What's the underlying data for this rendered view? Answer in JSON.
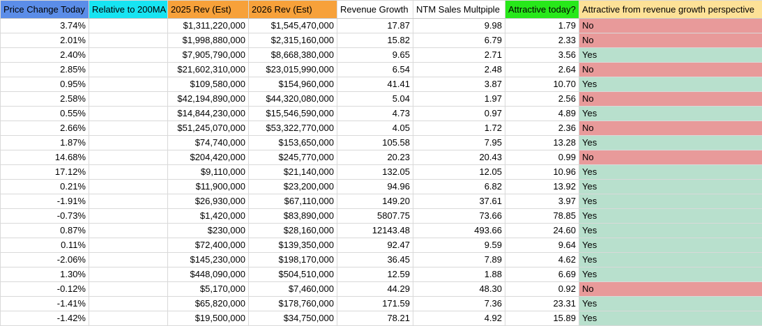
{
  "sheet": {
    "headers": [
      {
        "label": "Price Change Today",
        "bg": "#5b8de8"
      },
      {
        "label": "Relative to 200MA",
        "bg": "#17e4f2"
      },
      {
        "label": "2025 Rev (Est)",
        "bg": "#f7a13a"
      },
      {
        "label": "2026 Rev (Est)",
        "bg": "#f7a13a"
      },
      {
        "label": "Revenue Growth",
        "bg": "#ffffff"
      },
      {
        "label": "NTM Sales Multpiple",
        "bg": "#ffffff"
      },
      {
        "label": "Attractive today?",
        "bg": "#27e81a"
      },
      {
        "label": "Attractive from revenue growth perspective",
        "bg": "#fde197"
      }
    ],
    "colors": {
      "yes_bg": "#b8e0cd",
      "no_bg": "#e89a9a",
      "grid": "#d9d9d9"
    },
    "rows": [
      {
        "price_change": "3.74%",
        "relative_200ma": "",
        "rev_2025": "$1,311,220,000",
        "rev_2026": "$1,545,470,000",
        "revenue_growth": "17.87",
        "ntm_multiple": "9.98",
        "attractive_today": "1.79",
        "attractive_growth": "No"
      },
      {
        "price_change": "2.01%",
        "relative_200ma": "",
        "rev_2025": "$1,998,880,000",
        "rev_2026": "$2,315,160,000",
        "revenue_growth": "15.82",
        "ntm_multiple": "6.79",
        "attractive_today": "2.33",
        "attractive_growth": "No"
      },
      {
        "price_change": "2.40%",
        "relative_200ma": "",
        "rev_2025": "$7,905,790,000",
        "rev_2026": "$8,668,380,000",
        "revenue_growth": "9.65",
        "ntm_multiple": "2.71",
        "attractive_today": "3.56",
        "attractive_growth": "Yes"
      },
      {
        "price_change": "2.85%",
        "relative_200ma": "",
        "rev_2025": "$21,602,310,000",
        "rev_2026": "$23,015,990,000",
        "revenue_growth": "6.54",
        "ntm_multiple": "2.48",
        "attractive_today": "2.64",
        "attractive_growth": "No"
      },
      {
        "price_change": "0.95%",
        "relative_200ma": "",
        "rev_2025": "$109,580,000",
        "rev_2026": "$154,960,000",
        "revenue_growth": "41.41",
        "ntm_multiple": "3.87",
        "attractive_today": "10.70",
        "attractive_growth": "Yes"
      },
      {
        "price_change": "2.58%",
        "relative_200ma": "",
        "rev_2025": "$42,194,890,000",
        "rev_2026": "$44,320,080,000",
        "revenue_growth": "5.04",
        "ntm_multiple": "1.97",
        "attractive_today": "2.56",
        "attractive_growth": "No"
      },
      {
        "price_change": "0.55%",
        "relative_200ma": "",
        "rev_2025": "$14,844,230,000",
        "rev_2026": "$15,546,590,000",
        "revenue_growth": "4.73",
        "ntm_multiple": "0.97",
        "attractive_today": "4.89",
        "attractive_growth": "Yes"
      },
      {
        "price_change": "2.66%",
        "relative_200ma": "",
        "rev_2025": "$51,245,070,000",
        "rev_2026": "$53,322,770,000",
        "revenue_growth": "4.05",
        "ntm_multiple": "1.72",
        "attractive_today": "2.36",
        "attractive_growth": "No"
      },
      {
        "price_change": "1.87%",
        "relative_200ma": "",
        "rev_2025": "$74,740,000",
        "rev_2026": "$153,650,000",
        "revenue_growth": "105.58",
        "ntm_multiple": "7.95",
        "attractive_today": "13.28",
        "attractive_growth": "Yes"
      },
      {
        "price_change": "14.68%",
        "relative_200ma": "",
        "rev_2025": "$204,420,000",
        "rev_2026": "$245,770,000",
        "revenue_growth": "20.23",
        "ntm_multiple": "20.43",
        "attractive_today": "0.99",
        "attractive_growth": "No"
      },
      {
        "price_change": "17.12%",
        "relative_200ma": "",
        "rev_2025": "$9,110,000",
        "rev_2026": "$21,140,000",
        "revenue_growth": "132.05",
        "ntm_multiple": "12.05",
        "attractive_today": "10.96",
        "attractive_growth": "Yes"
      },
      {
        "price_change": "0.21%",
        "relative_200ma": "",
        "rev_2025": "$11,900,000",
        "rev_2026": "$23,200,000",
        "revenue_growth": "94.96",
        "ntm_multiple": "6.82",
        "attractive_today": "13.92",
        "attractive_growth": "Yes"
      },
      {
        "price_change": "-1.91%",
        "relative_200ma": "",
        "rev_2025": "$26,930,000",
        "rev_2026": "$67,110,000",
        "revenue_growth": "149.20",
        "ntm_multiple": "37.61",
        "attractive_today": "3.97",
        "attractive_growth": "Yes"
      },
      {
        "price_change": "-0.73%",
        "relative_200ma": "",
        "rev_2025": "$1,420,000",
        "rev_2026": "$83,890,000",
        "revenue_growth": "5807.75",
        "ntm_multiple": "73.66",
        "attractive_today": "78.85",
        "attractive_growth": "Yes"
      },
      {
        "price_change": "0.87%",
        "relative_200ma": "",
        "rev_2025": "$230,000",
        "rev_2026": "$28,160,000",
        "revenue_growth": "12143.48",
        "ntm_multiple": "493.66",
        "attractive_today": "24.60",
        "attractive_growth": "Yes"
      },
      {
        "price_change": "0.11%",
        "relative_200ma": "",
        "rev_2025": "$72,400,000",
        "rev_2026": "$139,350,000",
        "revenue_growth": "92.47",
        "ntm_multiple": "9.59",
        "attractive_today": "9.64",
        "attractive_growth": "Yes"
      },
      {
        "price_change": "-2.06%",
        "relative_200ma": "",
        "rev_2025": "$145,230,000",
        "rev_2026": "$198,170,000",
        "revenue_growth": "36.45",
        "ntm_multiple": "7.89",
        "attractive_today": "4.62",
        "attractive_growth": "Yes"
      },
      {
        "price_change": "1.30%",
        "relative_200ma": "",
        "rev_2025": "$448,090,000",
        "rev_2026": "$504,510,000",
        "revenue_growth": "12.59",
        "ntm_multiple": "1.88",
        "attractive_today": "6.69",
        "attractive_growth": "Yes"
      },
      {
        "price_change": "-0.12%",
        "relative_200ma": "",
        "rev_2025": "$5,170,000",
        "rev_2026": "$7,460,000",
        "revenue_growth": "44.29",
        "ntm_multiple": "48.30",
        "attractive_today": "0.92",
        "attractive_growth": "No"
      },
      {
        "price_change": "-1.41%",
        "relative_200ma": "",
        "rev_2025": "$65,820,000",
        "rev_2026": "$178,760,000",
        "revenue_growth": "171.59",
        "ntm_multiple": "7.36",
        "attractive_today": "23.31",
        "attractive_growth": "Yes"
      },
      {
        "price_change": "-1.42%",
        "relative_200ma": "",
        "rev_2025": "$19,500,000",
        "rev_2026": "$34,750,000",
        "revenue_growth": "78.21",
        "ntm_multiple": "4.92",
        "attractive_today": "15.89",
        "attractive_growth": "Yes"
      }
    ]
  }
}
